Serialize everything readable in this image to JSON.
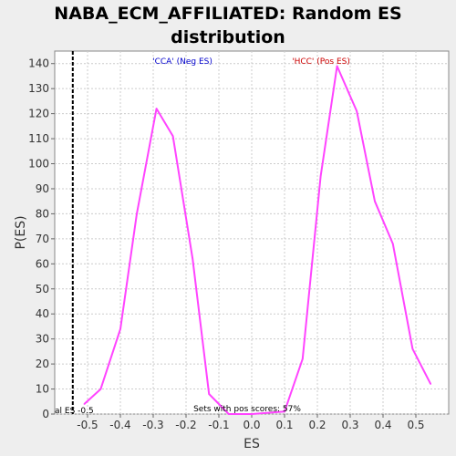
{
  "chart_data": {
    "type": "line",
    "title_line1": "NABA_ECM_AFFILIATED: Random ES",
    "title_line2": "distribution",
    "xlabel": "ES",
    "ylabel": "P(ES)",
    "xlim": [
      -0.6,
      0.6
    ],
    "ylim": [
      0,
      145
    ],
    "xticks": [
      "-0.5",
      "-0.4",
      "-0.3",
      "-0.2",
      "-0.1",
      "0.0",
      "0.1",
      "0.2",
      "0.3",
      "0.4",
      "0.5"
    ],
    "yticks": [
      "0",
      "10",
      "20",
      "30",
      "40",
      "50",
      "60",
      "70",
      "80",
      "90",
      "100",
      "110",
      "120",
      "130",
      "140"
    ],
    "grid": true,
    "series": [
      {
        "color": "#ff44ff",
        "x": [
          -0.51,
          -0.46,
          -0.4,
          -0.35,
          -0.29,
          -0.24,
          -0.18,
          -0.13,
          -0.07,
          0.0,
          0.1,
          0.155,
          0.21,
          0.26,
          0.32,
          0.375,
          0.43,
          0.49,
          0.545
        ],
        "y": [
          4,
          10,
          34,
          80,
          122,
          111,
          62,
          8,
          0,
          0,
          1,
          22,
          95,
          139,
          121,
          85,
          68,
          26,
          12
        ]
      }
    ],
    "annotations": {
      "neg_label": "'CCA' (Neg ES)",
      "pos_label": "'HCC' (Pos ES)",
      "neg_color": "#0000cc",
      "pos_color": "#cc0000",
      "actual_es_label": "al ES -0.5",
      "actual_es_value": -0.545,
      "pos_scores_note": "Sets with pos scores: 57%"
    }
  }
}
